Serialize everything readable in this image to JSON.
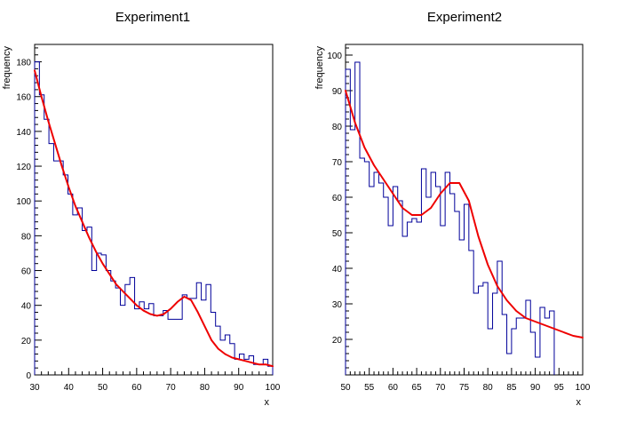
{
  "chart_data": [
    {
      "type": "histogram",
      "title": "Experiment1",
      "xlabel": "x",
      "ylabel": "frequency",
      "xlim": [
        30,
        100
      ],
      "ylim": [
        0,
        190
      ],
      "xticks": [
        30,
        40,
        50,
        60,
        70,
        80,
        90,
        100
      ],
      "yticks": [
        0,
        20,
        40,
        60,
        80,
        100,
        120,
        140,
        160,
        180
      ],
      "bin_width": 1.4,
      "bin_counts": [
        180,
        161,
        147,
        133,
        123,
        123,
        115,
        104,
        92,
        96,
        83,
        85,
        60,
        70,
        69,
        60,
        54,
        50,
        40,
        52,
        56,
        38,
        42,
        38,
        41,
        34,
        34,
        37,
        32,
        32,
        32,
        46,
        44,
        44,
        53,
        43,
        52,
        36,
        28,
        20,
        23,
        18,
        9,
        12,
        9,
        11,
        6,
        6,
        9,
        5
      ],
      "series": [
        {
          "kind": "fit",
          "color": "#ee0000",
          "x": [
            30,
            32,
            34,
            36,
            38,
            40,
            42,
            44,
            46,
            48,
            50,
            52,
            54,
            56,
            58,
            60,
            62,
            64,
            66,
            68,
            70,
            72,
            74,
            76,
            78,
            80,
            82,
            84,
            86,
            88,
            90,
            92,
            94,
            96,
            98,
            100
          ],
          "y": [
            175,
            160,
            146,
            133,
            120,
            108,
            97,
            88,
            79,
            71,
            64,
            58,
            52,
            48,
            44,
            40,
            37,
            35,
            34,
            35,
            38,
            42,
            45,
            43,
            36,
            28,
            20,
            15,
            12,
            10,
            9,
            8,
            7,
            6,
            6,
            5
          ]
        }
      ],
      "grid": false,
      "legend": "none"
    },
    {
      "type": "histogram",
      "title": "Experiment2",
      "xlabel": "x",
      "ylabel": "frequency",
      "xlim": [
        50,
        100
      ],
      "ylim": [
        10,
        103
      ],
      "xticks": [
        50,
        55,
        60,
        65,
        70,
        75,
        80,
        85,
        90,
        95,
        100
      ],
      "yticks": [
        20,
        30,
        40,
        50,
        60,
        70,
        80,
        90,
        100
      ],
      "bin_width": 1,
      "bin_counts": [
        96,
        79,
        98,
        71,
        70,
        63,
        67,
        64,
        60,
        52,
        63,
        59,
        49,
        53,
        54,
        53,
        68,
        60,
        67,
        63,
        52,
        67,
        61,
        56,
        48,
        58,
        45,
        33,
        35,
        36,
        23,
        33,
        42,
        27,
        16,
        23,
        26,
        26,
        31,
        22,
        15,
        29,
        26,
        28
      ],
      "series": [
        {
          "kind": "fit",
          "color": "#ee0000",
          "x": [
            50,
            52,
            54,
            56,
            58,
            60,
            62,
            64,
            66,
            68,
            70,
            72,
            74,
            76,
            78,
            80,
            82,
            84,
            86,
            88,
            90,
            92,
            94,
            96,
            98,
            100
          ],
          "y": [
            90,
            81,
            74,
            69,
            65,
            61,
            57,
            55,
            55,
            57,
            61,
            64,
            64,
            59,
            49,
            41,
            35,
            31,
            28,
            26,
            25,
            24,
            23,
            22,
            21,
            20.5
          ]
        }
      ],
      "grid": false,
      "legend": "none"
    }
  ]
}
